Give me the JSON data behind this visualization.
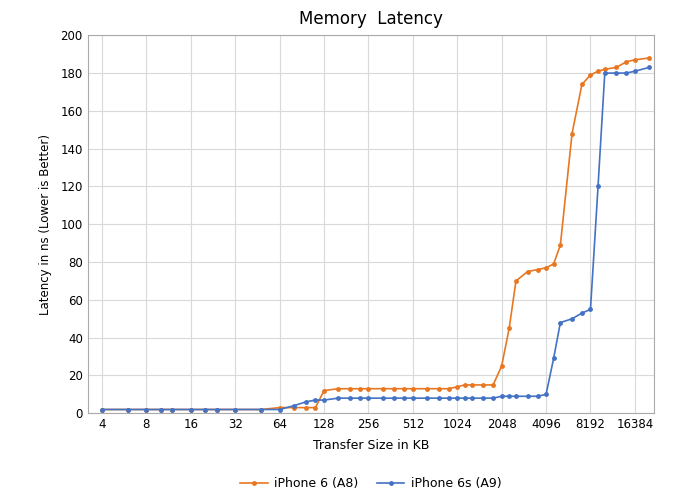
{
  "title": "Memory  Latency",
  "xlabel": "Transfer Size in KB",
  "ylabel": "Latency in ns (Lower is Better)",
  "x_ticks_labels": [
    "4",
    "8",
    "16",
    "32",
    "64",
    "128",
    "256",
    "512",
    "1024",
    "2048",
    "4096",
    "8192",
    "16384"
  ],
  "x_ticks_positions": [
    4,
    8,
    16,
    32,
    64,
    128,
    256,
    512,
    1024,
    2048,
    4096,
    8192,
    16384
  ],
  "ylim": [
    0,
    200
  ],
  "yticks": [
    0,
    20,
    40,
    60,
    80,
    100,
    120,
    140,
    160,
    180,
    200
  ],
  "iphone6_color": "#E87722",
  "iphone6s_color": "#4472C4",
  "legend_labels": [
    "iPhone 6 (A8)",
    "iPhone 6s (A9)"
  ],
  "iphone6_x": [
    4,
    6,
    8,
    10,
    12,
    16,
    20,
    24,
    32,
    48,
    64,
    80,
    96,
    112,
    128,
    160,
    192,
    224,
    256,
    320,
    384,
    448,
    512,
    640,
    768,
    896,
    1024,
    1152,
    1280,
    1536,
    1792,
    2048,
    2304,
    2560,
    3072,
    3584,
    4096,
    4608,
    5120,
    6144,
    7168,
    8192,
    9216,
    10240,
    12288,
    14336,
    16384,
    20480
  ],
  "iphone6_y": [
    2,
    2,
    2,
    2,
    2,
    2,
    2,
    2,
    2,
    2,
    3,
    3,
    3,
    3,
    12,
    13,
    13,
    13,
    13,
    13,
    13,
    13,
    13,
    13,
    13,
    13,
    14,
    15,
    15,
    15,
    15,
    25,
    45,
    70,
    75,
    76,
    77,
    79,
    89,
    148,
    174,
    179,
    181,
    182,
    183,
    186,
    187,
    188
  ],
  "iphone6s_x": [
    4,
    6,
    8,
    10,
    12,
    16,
    20,
    24,
    32,
    48,
    64,
    80,
    96,
    112,
    128,
    160,
    192,
    224,
    256,
    320,
    384,
    448,
    512,
    640,
    768,
    896,
    1024,
    1152,
    1280,
    1536,
    1792,
    2048,
    2304,
    2560,
    3072,
    3584,
    4096,
    4608,
    5120,
    6144,
    7168,
    8192,
    9216,
    10240,
    12288,
    14336,
    16384,
    20480
  ],
  "iphone6s_y": [
    2,
    2,
    2,
    2,
    2,
    2,
    2,
    2,
    2,
    2,
    2,
    4,
    6,
    7,
    7,
    8,
    8,
    8,
    8,
    8,
    8,
    8,
    8,
    8,
    8,
    8,
    8,
    8,
    8,
    8,
    8,
    9,
    9,
    9,
    9,
    9,
    10,
    29,
    48,
    50,
    53,
    55,
    120,
    180,
    180,
    180,
    181,
    183
  ],
  "grid_color": "#D9D9D9",
  "bg_color": "#FFFFFF",
  "fig_bg": "#FFFFFF"
}
